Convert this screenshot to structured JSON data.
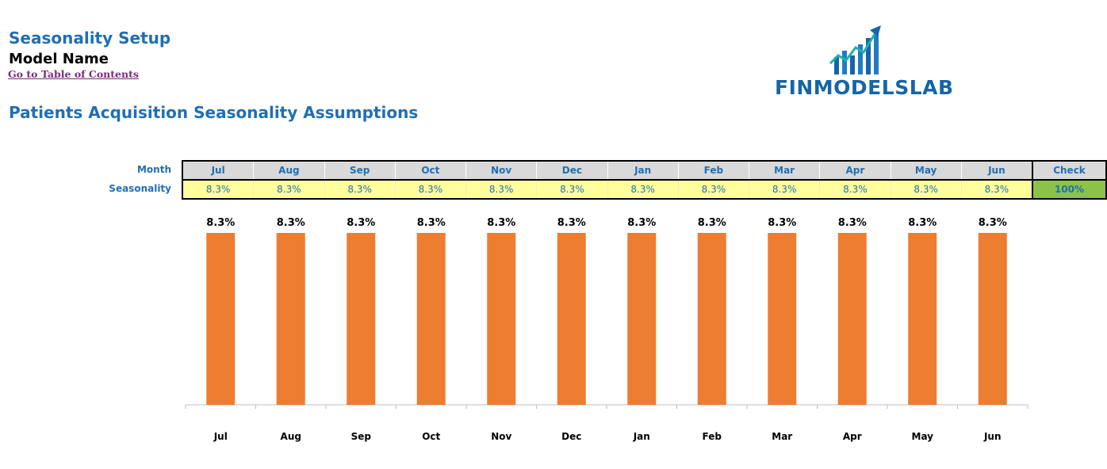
{
  "header": {
    "title": "Seasonality Setup",
    "model_name": "Model Name",
    "toc_link": "Go to Table of Contents",
    "section_title": "Patients Acquisition Seasonality Assumptions"
  },
  "logo": {
    "text": "FINMODELSLAB"
  },
  "table": {
    "month_label": "Month",
    "seasonality_label": "Seasonality",
    "months": [
      "Jul",
      "Aug",
      "Sep",
      "Oct",
      "Nov",
      "Dec",
      "Jan",
      "Feb",
      "Mar",
      "Apr",
      "May",
      "Jun"
    ],
    "values": [
      "8.3%",
      "8.3%",
      "8.3%",
      "8.3%",
      "8.3%",
      "8.3%",
      "8.3%",
      "8.3%",
      "8.3%",
      "8.3%",
      "8.3%",
      "8.3%"
    ],
    "check_label": "Check",
    "check_value": "100%"
  },
  "colors": {
    "accent_blue": "#1f6fb5",
    "bar": "#ed7d31",
    "input_yellow": "#ffff9e",
    "check_green": "#8bc34a"
  },
  "chart_data": {
    "type": "bar",
    "title": "",
    "xlabel": "",
    "ylabel": "",
    "categories": [
      "Jul",
      "Aug",
      "Sep",
      "Oct",
      "Nov",
      "Dec",
      "Jan",
      "Feb",
      "Mar",
      "Apr",
      "May",
      "Jun"
    ],
    "values": [
      8.3,
      8.3,
      8.3,
      8.3,
      8.3,
      8.3,
      8.3,
      8.3,
      8.3,
      8.3,
      8.3,
      8.3
    ],
    "data_labels": [
      "8.3%",
      "8.3%",
      "8.3%",
      "8.3%",
      "8.3%",
      "8.3%",
      "8.3%",
      "8.3%",
      "8.3%",
      "8.3%",
      "8.3%",
      "8.3%"
    ],
    "ylim": [
      0,
      8.3
    ],
    "grid": false,
    "legend": "none"
  }
}
